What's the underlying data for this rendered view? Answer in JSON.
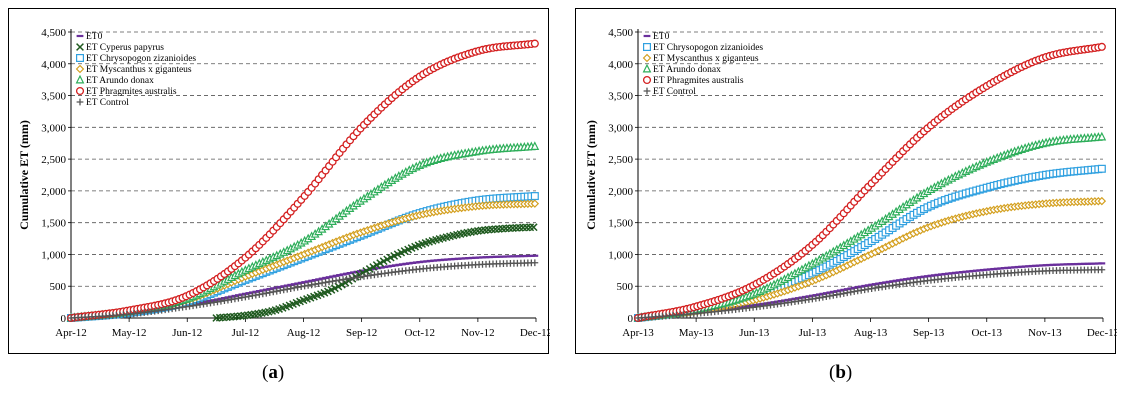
{
  "captions": {
    "a_open": "(",
    "a_letter": "a",
    "a_close": ")",
    "b_open": "(",
    "b_letter": "b",
    "b_close": ")"
  },
  "chart_data": [
    {
      "panel": "a",
      "type": "line",
      "xlabel": "",
      "ylabel": "Cumulative ET (mm)",
      "x_ticks": [
        "Apr-12",
        "May-12",
        "Jun-12",
        "Jul-12",
        "Aug-12",
        "Sep-12",
        "Oct-12",
        "Nov-12",
        "Dec-12"
      ],
      "ylim": [
        0,
        4500
      ],
      "y_ticks": [
        "0",
        "500",
        "1,000",
        "1,500",
        "2,000",
        "2,500",
        "3,000",
        "3,500",
        "4,000",
        "4,500"
      ],
      "grid": "horizontal dashed",
      "legend": "top-left",
      "series": [
        {
          "name": "ET0",
          "color": "#6a2f9c",
          "marker": "dash",
          "x": [
            0,
            1,
            2,
            3,
            4,
            5,
            6,
            7,
            8
          ],
          "y": [
            0,
            70,
            200,
            380,
            560,
            740,
            880,
            950,
            980
          ]
        },
        {
          "name": "ET Cyperus papyrus",
          "color": "#1f5a1f",
          "marker": "x",
          "x": [
            2.5,
            3,
            3.5,
            4,
            4.5,
            5,
            5.5,
            6,
            6.5,
            7,
            7.5,
            8
          ],
          "y": [
            0,
            40,
            120,
            280,
            450,
            700,
            950,
            1150,
            1280,
            1370,
            1410,
            1430
          ]
        },
        {
          "name": "ET Chrysopogon zizanioides",
          "color": "#2fa0e0",
          "marker": "square",
          "x": [
            0,
            1,
            2,
            3,
            4,
            5,
            6,
            7,
            8
          ],
          "y": [
            0,
            80,
            250,
            600,
            950,
            1300,
            1650,
            1850,
            1920
          ]
        },
        {
          "name": "ET Myscanthus x giganteus",
          "color": "#d4a020",
          "marker": "diamond",
          "x": [
            0,
            1,
            2,
            3,
            4,
            5,
            6,
            7,
            8
          ],
          "y": [
            0,
            90,
            280,
            650,
            1000,
            1350,
            1620,
            1760,
            1800
          ]
        },
        {
          "name": "ET Arundo donax",
          "color": "#2eae5a",
          "marker": "triangle",
          "x": [
            0,
            1,
            2,
            3,
            4,
            5,
            6,
            7,
            8
          ],
          "y": [
            0,
            100,
            300,
            750,
            1200,
            1850,
            2400,
            2620,
            2700
          ]
        },
        {
          "name": "ET Phragmites australis",
          "color": "#d42020",
          "marker": "circle",
          "x": [
            0,
            1,
            2,
            3,
            4,
            5,
            6,
            7,
            8
          ],
          "y": [
            0,
            120,
            350,
            950,
            1900,
            3000,
            3800,
            4200,
            4320
          ]
        },
        {
          "name": "ET Control",
          "color": "#555555",
          "marker": "plus",
          "x": [
            0,
            1,
            2,
            3,
            4,
            5,
            6,
            7,
            8
          ],
          "y": [
            0,
            60,
            180,
            330,
            500,
            650,
            770,
            840,
            870
          ]
        }
      ]
    },
    {
      "panel": "b",
      "type": "line",
      "xlabel": "",
      "ylabel": "Cumulative ET (mm)",
      "x_ticks": [
        "Apr-13",
        "May-13",
        "Jun-13",
        "Jul-13",
        "Aug-13",
        "Sep-13",
        "Oct-13",
        "Nov-13",
        "Dec-13"
      ],
      "ylim": [
        0,
        4500
      ],
      "y_ticks": [
        "0",
        "500",
        "1,000",
        "1,500",
        "2,000",
        "2,500",
        "3,000",
        "3,500",
        "4,000",
        "4,500"
      ],
      "grid": "horizontal dashed",
      "legend": "top-left",
      "series": [
        {
          "name": "ET0",
          "color": "#6a2f9c",
          "marker": "dash",
          "x": [
            0,
            1,
            2,
            3,
            4,
            5,
            6,
            7,
            8
          ],
          "y": [
            0,
            80,
            200,
            350,
            520,
            660,
            760,
            830,
            860
          ]
        },
        {
          "name": "ET Chrysopogon zizanioides",
          "color": "#2fa0e0",
          "marker": "square",
          "x": [
            0,
            1,
            2,
            3,
            4,
            5,
            6,
            7,
            8
          ],
          "y": [
            0,
            120,
            330,
            700,
            1200,
            1750,
            2050,
            2250,
            2350
          ]
        },
        {
          "name": "ET Myscanthus x giganteus",
          "color": "#d4a020",
          "marker": "diamond",
          "x": [
            0,
            1,
            2,
            3,
            4,
            5,
            6,
            7,
            8
          ],
          "y": [
            0,
            100,
            280,
            580,
            1000,
            1430,
            1680,
            1800,
            1840
          ]
        },
        {
          "name": "ET Arundo donax",
          "color": "#2eae5a",
          "marker": "triangle",
          "x": [
            0,
            1,
            2,
            3,
            4,
            5,
            6,
            7,
            8
          ],
          "y": [
            0,
            130,
            380,
            850,
            1400,
            2000,
            2450,
            2750,
            2850
          ]
        },
        {
          "name": "ET Phragmites australis",
          "color": "#d42020",
          "marker": "circle",
          "x": [
            0,
            1,
            2,
            3,
            4,
            5,
            6,
            7,
            8
          ],
          "y": [
            0,
            180,
            520,
            1150,
            2100,
            3000,
            3650,
            4100,
            4270
          ]
        },
        {
          "name": "ET Control",
          "color": "#555555",
          "marker": "plus",
          "x": [
            0,
            1,
            2,
            3,
            4,
            5,
            6,
            7,
            8
          ],
          "y": [
            0,
            70,
            170,
            300,
            460,
            590,
            680,
            740,
            760
          ]
        }
      ]
    }
  ]
}
